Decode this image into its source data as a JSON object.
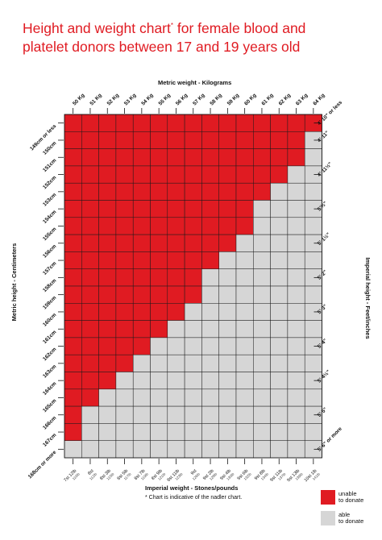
{
  "page": {
    "title": "Height and weight chart for female blood and platelet donors between 17 and 19 years old",
    "title_line1": "Height and weight chart",
    "title_mark": "*",
    "title_line1_rest": " for female blood and",
    "title_line2": "platelet donors between 17 and 19 years old",
    "footnote": "* Chart is indicative of the nadler chart.",
    "colors": {
      "unable": "#e01b22",
      "able": "#d6d6d6",
      "title": "#e01b22"
    }
  },
  "legend": [
    {
      "label": "unable\nto donate",
      "color": "#e01b22"
    },
    {
      "label": "able\nto donate",
      "color": "#d6d6d6"
    }
  ],
  "chart_data": {
    "type": "heatmap",
    "title": "Height and weight chart for female blood and platelet donors between 17 and 19 years old",
    "xlabel_top": "Metric weight - Kilograms",
    "xlabel_bottom": "Imperial weight - Stones/pounds",
    "ylabel_left": "Metric height - Centimeters",
    "ylabel_right": "Imperial height - Feet/inches",
    "weights_kg": [
      "50 Kg",
      "51 Kg",
      "52 Kg",
      "53 Kg",
      "54 Kg",
      "55 Kg",
      "56 Kg",
      "57 Kg",
      "58 Kg",
      "59 Kg",
      "60 Kg",
      "61 Kg",
      "62 Kg",
      "63 Kg",
      "64 Kg"
    ],
    "weights_imperial": [
      {
        "st": "7st 12lb",
        "sub": "110lb"
      },
      {
        "st": "8st",
        "sub": "112lb"
      },
      {
        "st": "8st 3lb",
        "sub": "115lb"
      },
      {
        "st": "8st 5lb",
        "sub": "117lb"
      },
      {
        "st": "8st 7lb",
        "sub": "119lb"
      },
      {
        "st": "8st 9lb",
        "sub": "121lb"
      },
      {
        "st": "8st 11lb",
        "sub": "123lb"
      },
      {
        "st": "9st",
        "sub": "126lb"
      },
      {
        "st": "9st 2lb",
        "sub": "128lb"
      },
      {
        "st": "9st 4lb",
        "sub": "130lb"
      },
      {
        "st": "9st 6lb",
        "sub": "132lb"
      },
      {
        "st": "9st 8lb",
        "sub": "134lb"
      },
      {
        "st": "9st 11lb",
        "sub": "137lb"
      },
      {
        "st": "9st 13lb",
        "sub": "139lb"
      },
      {
        "st": "10st 1lb",
        "sub": "141lb"
      }
    ],
    "heights_cm": [
      "149cm or less",
      "150cm",
      "151cm",
      "152cm",
      "153cm",
      "154cm",
      "155cm",
      "156cm",
      "157cm",
      "158cm",
      "159cm",
      "160cm",
      "161cm",
      "162cm",
      "163cm",
      "164cm",
      "165cm",
      "166cm",
      "167cm",
      "168cm or more"
    ],
    "heights_imperial": [
      {
        "label": "4' 10\" or less",
        "row": 0
      },
      {
        "label": "4' 11\"",
        "row": 1
      },
      {
        "label": "4' 11½\"",
        "row": 3
      },
      {
        "label": "5'½\"",
        "row": 5
      },
      {
        "label": "5' 1½\"",
        "row": 7
      },
      {
        "label": "5' 2\"",
        "row": 9
      },
      {
        "label": "5' 3\"",
        "row": 11
      },
      {
        "label": "5' 4\"",
        "row": 13
      },
      {
        "label": "5' 4½\"",
        "row": 15
      },
      {
        "label": "5' 5\"",
        "row": 17
      },
      {
        "label": "5' 6\" or more",
        "row": 19
      }
    ],
    "unable_cols_per_height": [
      15,
      14,
      14,
      13,
      12,
      11,
      11,
      10,
      9,
      8,
      8,
      7,
      6,
      5,
      4,
      3,
      2,
      1,
      1,
      0
    ],
    "legend": [
      "unable to donate",
      "able to donate"
    ],
    "grid": true
  }
}
